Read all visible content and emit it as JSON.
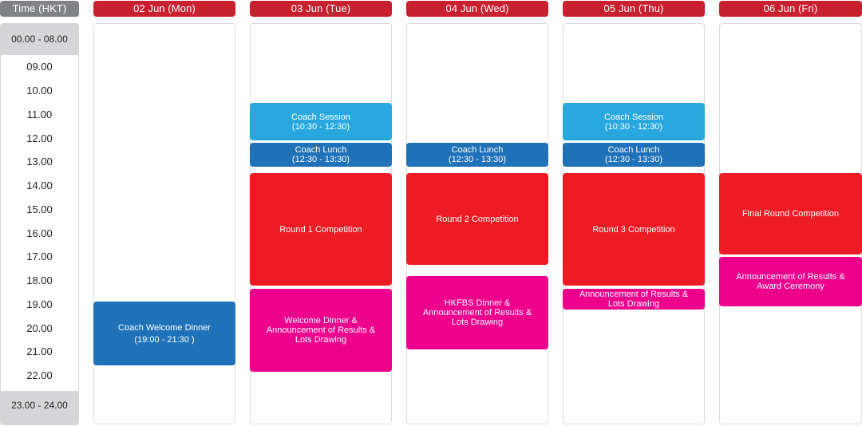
{
  "header": {
    "time_label": "Time (HKT)",
    "days": [
      "02 Jun (Mon)",
      "03 Jun (Tue)",
      "04 Jun (Wed)",
      "05 Jun (Thu)",
      "06 Jun (Fri)"
    ]
  },
  "time_axis": {
    "top_band": "00.00 - 08.00",
    "hours": [
      "09.00",
      "10.00",
      "11.00",
      "12.00",
      "13.00",
      "14.00",
      "15.00",
      "16.00",
      "17.00",
      "18.00",
      "19.00",
      "20.00",
      "21.00",
      "22.00"
    ],
    "bottom_band": "23.00 - 24.00"
  },
  "events": {
    "mon": {
      "welcome_dinner": {
        "title": "Coach Welcome Dinner",
        "time": "(19:00 - 21:30 )"
      }
    },
    "tue": {
      "coach_session": {
        "title": "Coach Session",
        "time": "(10:30 - 12:30)"
      },
      "coach_lunch": {
        "title": "Coach Lunch",
        "time": "(12:30 - 13:30)"
      },
      "round": {
        "title": "Round 1 Competition"
      },
      "dinner": {
        "line1": "Welcome Dinner &",
        "line2": "Announcement of Results &",
        "line3": "Lots Drawing"
      }
    },
    "wed": {
      "coach_lunch": {
        "title": "Coach Lunch",
        "time": "(12:30 - 13:30)"
      },
      "round": {
        "title": "Round 2 Competition"
      },
      "dinner": {
        "line1": "HKFBS Dinner &",
        "line2": "Announcement of Results &",
        "line3": "Lots Drawing"
      }
    },
    "thu": {
      "coach_session": {
        "title": "Coach Session",
        "time": "(10:30 - 12:30)"
      },
      "coach_lunch": {
        "title": "Coach Lunch",
        "time": "(12:30 - 13:30)"
      },
      "round": {
        "title": "Round 3 Competition"
      },
      "results": {
        "line1": "Announcement of Results &",
        "line2": "Lots Drawing"
      }
    },
    "fri": {
      "round": {
        "title": "Final Round Competition"
      },
      "results": {
        "line1": "Announcement of Results &",
        "line2": "Award Ceremony"
      }
    }
  },
  "colors": {
    "header_red": "#c8202f",
    "time_header_grey": "#808285",
    "coach_session": "#29a8e0",
    "coach_lunch": "#1f72b8",
    "competition": "#ed1c24",
    "ceremony": "#ec008c"
  }
}
